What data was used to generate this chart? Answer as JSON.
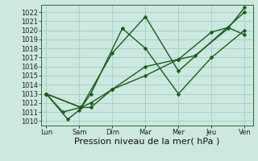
{
  "xlabel": "Pression niveau de la mer( hPa )",
  "background_color": "#cce8e0",
  "grid_color": "#99ccbb",
  "line_color": "#1a5c1a",
  "ylim": [
    1009.5,
    1022.8
  ],
  "yticks": [
    1010,
    1011,
    1012,
    1013,
    1014,
    1015,
    1016,
    1017,
    1018,
    1019,
    1020,
    1021,
    1022
  ],
  "x_labels": [
    "Lun",
    "Sam",
    "Dim",
    "Mar",
    "Mer",
    "Jeu",
    "Ven"
  ],
  "x_positions": [
    0,
    1,
    2,
    3,
    4,
    5,
    6
  ],
  "series1_x": [
    0,
    0.5,
    1.05,
    2.0,
    3.0,
    4.0,
    6.0
  ],
  "series1_y": [
    1013.0,
    1011.0,
    1011.5,
    1017.5,
    1021.5,
    1015.5,
    1022.0
  ],
  "series2_x": [
    0,
    0.65,
    1.0,
    1.35,
    2.3,
    3.0,
    4.0,
    5.0,
    6.0
  ],
  "series2_y": [
    1013.0,
    1010.2,
    1011.2,
    1013.0,
    1020.2,
    1018.0,
    1013.0,
    1017.0,
    1020.0
  ],
  "series3_x": [
    0,
    1.05,
    1.35,
    2.0,
    3.0,
    4.0,
    5.0,
    5.5,
    6.0
  ],
  "series3_y": [
    1013.0,
    1011.5,
    1012.0,
    1013.5,
    1016.0,
    1016.8,
    1019.8,
    1020.3,
    1019.5
  ],
  "series4_x": [
    0,
    1.05,
    1.35,
    2.0,
    3.0,
    4.0,
    4.5,
    5.5,
    6.0
  ],
  "series4_y": [
    1013.0,
    1011.5,
    1011.5,
    1013.5,
    1015.0,
    1016.8,
    1017.2,
    1020.2,
    1022.5
  ],
  "marker_size": 2.5,
  "linewidth": 1.0,
  "xlabel_fontsize": 8,
  "tick_fontsize": 6
}
